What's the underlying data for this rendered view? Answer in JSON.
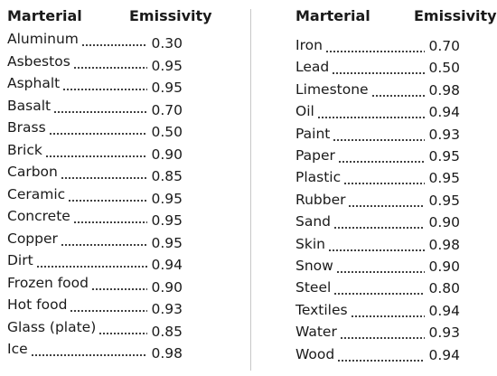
{
  "left_table": {
    "header_material": "Marterial",
    "header_emissivity": "Emissivity",
    "rows": [
      {
        "material": "Aluminum",
        "emissivity": "0.30"
      },
      {
        "material": "Asbestos",
        "emissivity": "0.95"
      },
      {
        "material": "Asphalt",
        "emissivity": "0.95"
      },
      {
        "material": "Basalt",
        "emissivity": "0.70"
      },
      {
        "material": "Brass",
        "emissivity": "0.50"
      },
      {
        "material": "Brick",
        "emissivity": "0.90"
      },
      {
        "material": "Carbon",
        "emissivity": "0.85"
      },
      {
        "material": "Ceramic",
        "emissivity": "0.95"
      },
      {
        "material": "Concrete",
        "emissivity": "0.95"
      },
      {
        "material": "Copper",
        "emissivity": "0.95"
      },
      {
        "material": "Dirt",
        "emissivity": "0.94"
      },
      {
        "material": "Frozen food",
        "emissivity": "0.90"
      },
      {
        "material": "Hot food",
        "emissivity": "0.93"
      },
      {
        "material": "Glass (plate)",
        "emissivity": "0.85"
      },
      {
        "material": "Ice",
        "emissivity": "0.98"
      }
    ]
  },
  "right_table": {
    "header_material": "Marterial",
    "header_emissivity": "Emissivity",
    "rows": [
      {
        "material": "Iron",
        "emissivity": "0.70"
      },
      {
        "material": "Lead",
        "emissivity": "0.50"
      },
      {
        "material": "Limestone",
        "emissivity": "0.98"
      },
      {
        "material": "Oil",
        "emissivity": "0.94"
      },
      {
        "material": "Paint",
        "emissivity": "0.93"
      },
      {
        "material": "Paper",
        "emissivity": "0.95"
      },
      {
        "material": "Plastic",
        "emissivity": "0.95"
      },
      {
        "material": "Rubber",
        "emissivity": "0.95"
      },
      {
        "material": "Sand",
        "emissivity": "0.90"
      },
      {
        "material": "Skin",
        "emissivity": "0.98"
      },
      {
        "material": "Snow",
        "emissivity": "0.90"
      },
      {
        "material": "Steel",
        "emissivity": "0.80"
      },
      {
        "material": "Textiles",
        "emissivity": "0.94"
      },
      {
        "material": "Water",
        "emissivity": "0.93"
      },
      {
        "material": "Wood",
        "emissivity": "0.94"
      }
    ]
  }
}
